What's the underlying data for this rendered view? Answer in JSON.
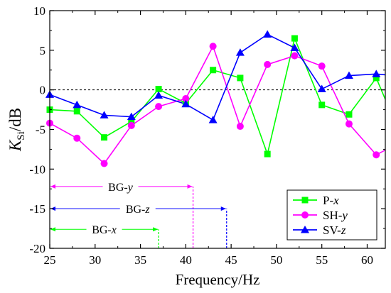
{
  "chart_data": {
    "type": "line",
    "xlabel": "Frequency/Hz",
    "ylabel": {
      "main": "K",
      "sub": "Si",
      "unit": "/dB"
    },
    "xlim": [
      25,
      62
    ],
    "ylim": [
      -20,
      10
    ],
    "x_ticks": [
      25,
      30,
      35,
      40,
      45,
      50,
      55,
      60
    ],
    "x_tick_labels": [
      "25",
      "30",
      "35",
      "40",
      "45",
      "50",
      "55",
      "60"
    ],
    "y_ticks": [
      -20,
      -15,
      -10,
      -5,
      0,
      5,
      10
    ],
    "y_tick_labels": [
      "-20",
      "-15",
      "-10",
      "-5",
      "0",
      "5",
      "10"
    ],
    "grid": false,
    "zero_line": {
      "y": 0,
      "style": "dashed",
      "color": "#000000"
    },
    "legend": {
      "placement": "bottom-right"
    },
    "series": [
      {
        "name": "P-x",
        "name_parts": [
          "P-",
          "x"
        ],
        "color": "#00ff00",
        "marker": "square",
        "x": [
          25,
          28,
          31,
          34,
          37,
          40,
          43,
          46,
          49,
          52,
          55,
          58,
          61,
          62
        ],
        "y": [
          -2.5,
          -2.7,
          -6.0,
          -4.0,
          0.1,
          -1.7,
          2.5,
          1.5,
          -8.1,
          6.5,
          -1.9,
          -3.1,
          1.5,
          -1.2
        ]
      },
      {
        "name": "SH-y",
        "name_parts": [
          "SH-",
          "y"
        ],
        "color": "#ff00ff",
        "marker": "circle",
        "x": [
          25,
          28,
          31,
          34,
          37,
          40,
          43,
          46,
          49,
          52,
          55,
          58,
          61,
          62
        ],
        "y": [
          -4.2,
          -6.1,
          -9.3,
          -4.5,
          -2.1,
          -1.1,
          5.5,
          -4.6,
          3.2,
          4.3,
          3.0,
          -4.3,
          -8.2,
          -7.6
        ]
      },
      {
        "name": "SV-z",
        "name_parts": [
          "SV-",
          "z"
        ],
        "color": "#0000ff",
        "marker": "triangle",
        "x": [
          25,
          28,
          31,
          34,
          37,
          40,
          43,
          46,
          49,
          52,
          55,
          58,
          61,
          62
        ],
        "y": [
          -0.6,
          -1.9,
          -3.2,
          -3.4,
          -0.7,
          -1.8,
          -3.8,
          4.7,
          7.0,
          5.3,
          0.1,
          1.8,
          2.0,
          1.9
        ]
      }
    ],
    "band_gaps": [
      {
        "label_parts": [
          "BG-",
          "y"
        ],
        "color": "#ff00ff",
        "x_start": 25,
        "x_end": 40.8,
        "arrow_y": -12.2,
        "label_x": 32.8
      },
      {
        "label_parts": [
          "BG-",
          "z"
        ],
        "color": "#0000ff",
        "x_start": 25,
        "x_end": 44.5,
        "arrow_y": -15.0,
        "label_x": 34.7
      },
      {
        "label_parts": [
          "BG-",
          "x"
        ],
        "color": "#00ff00",
        "x_start": 25,
        "x_end": 37.0,
        "arrow_y": -17.6,
        "label_x": 31.0
      }
    ]
  }
}
